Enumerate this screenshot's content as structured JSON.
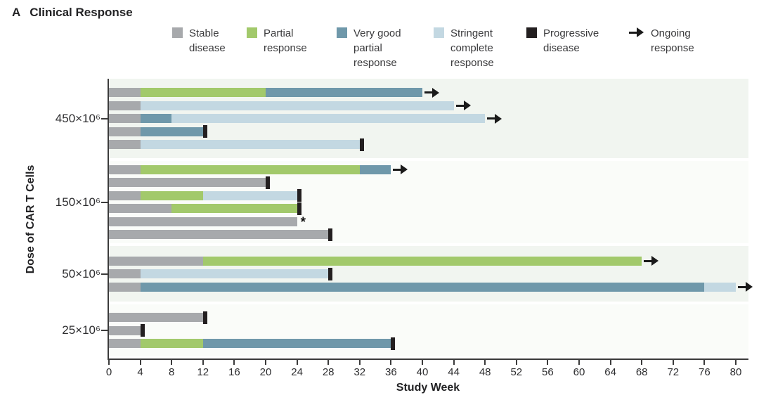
{
  "title": {
    "panel": "A",
    "text": "Clinical Response"
  },
  "legend": [
    {
      "key": "stable",
      "label": "Stable disease",
      "color": "#a7a9ac",
      "type": "swatch"
    },
    {
      "key": "partial",
      "label": "Partial response",
      "color": "#a2c96b",
      "type": "swatch"
    },
    {
      "key": "vgpr",
      "label": "Very good partial response",
      "color": "#6f98aa",
      "type": "swatch"
    },
    {
      "key": "scr",
      "label": "Stringent complete response",
      "color": "#c3d8e2",
      "type": "swatch"
    },
    {
      "key": "pd",
      "label": "Progressive disease",
      "color": "#231f20",
      "type": "swatch"
    },
    {
      "key": "ongoing",
      "label": "Ongoing response",
      "color": "#1a1a1a",
      "type": "arrow"
    }
  ],
  "annotations": {
    "asterisk": "*"
  },
  "chart_data": {
    "type": "bar",
    "orientation": "horizontal",
    "title": "Clinical Response",
    "xlabel": "Study Week",
    "ylabel": "Dose of CAR T Cells",
    "xlim": [
      0,
      81.5
    ],
    "xticks": [
      0,
      4,
      8,
      12,
      16,
      20,
      24,
      28,
      32,
      36,
      40,
      44,
      48,
      52,
      56,
      60,
      64,
      68,
      72,
      76,
      80
    ],
    "colors": {
      "stable": "#a7a9ac",
      "partial": "#a2c96b",
      "vgpr": "#6f98aa",
      "scr": "#c3d8e2",
      "pd": "#231f20",
      "band_tint": "#f1f5f0",
      "band_lite": "#fafcf9",
      "axis": "#3b3b3b"
    },
    "groups": [
      {
        "dose": "450×10⁶",
        "patients": [
          {
            "segments": [
              {
                "response": "stable",
                "start": 0,
                "end": 4
              },
              {
                "response": "partial",
                "start": 4,
                "end": 20
              },
              {
                "response": "vgpr",
                "start": 20,
                "end": 40
              }
            ],
            "marker": "ongoing"
          },
          {
            "segments": [
              {
                "response": "stable",
                "start": 0,
                "end": 4
              },
              {
                "response": "scr",
                "start": 4,
                "end": 44
              }
            ],
            "marker": "ongoing"
          },
          {
            "segments": [
              {
                "response": "stable",
                "start": 0,
                "end": 4
              },
              {
                "response": "vgpr",
                "start": 4,
                "end": 8
              },
              {
                "response": "scr",
                "start": 8,
                "end": 48
              }
            ],
            "marker": "ongoing"
          },
          {
            "segments": [
              {
                "response": "stable",
                "start": 0,
                "end": 4
              },
              {
                "response": "vgpr",
                "start": 4,
                "end": 12
              }
            ],
            "marker": "pd"
          },
          {
            "segments": [
              {
                "response": "stable",
                "start": 0,
                "end": 4
              },
              {
                "response": "scr",
                "start": 4,
                "end": 32
              }
            ],
            "marker": "pd"
          }
        ]
      },
      {
        "dose": "150×10⁶",
        "patients": [
          {
            "segments": [
              {
                "response": "stable",
                "start": 0,
                "end": 4
              },
              {
                "response": "partial",
                "start": 4,
                "end": 32
              },
              {
                "response": "vgpr",
                "start": 32,
                "end": 36
              }
            ],
            "marker": "ongoing"
          },
          {
            "segments": [
              {
                "response": "stable",
                "start": 0,
                "end": 20
              }
            ],
            "marker": "pd"
          },
          {
            "segments": [
              {
                "response": "stable",
                "start": 0,
                "end": 4
              },
              {
                "response": "partial",
                "start": 4,
                "end": 12
              },
              {
                "response": "scr",
                "start": 12,
                "end": 24
              }
            ],
            "marker": "pd"
          },
          {
            "segments": [
              {
                "response": "stable",
                "start": 0,
                "end": 8
              },
              {
                "response": "partial",
                "start": 8,
                "end": 24
              }
            ],
            "marker": "pd"
          },
          {
            "segments": [
              {
                "response": "stable",
                "start": 0,
                "end": 24
              }
            ],
            "marker": "asterisk"
          },
          {
            "segments": [
              {
                "response": "stable",
                "start": 0,
                "end": 28
              }
            ],
            "marker": "pd"
          }
        ]
      },
      {
        "dose": "50×10⁶",
        "patients": [
          {
            "segments": [
              {
                "response": "stable",
                "start": 0,
                "end": 12
              },
              {
                "response": "partial",
                "start": 12,
                "end": 68
              }
            ],
            "marker": "ongoing"
          },
          {
            "segments": [
              {
                "response": "stable",
                "start": 0,
                "end": 4
              },
              {
                "response": "scr",
                "start": 4,
                "end": 28
              }
            ],
            "marker": "pd"
          },
          {
            "segments": [
              {
                "response": "stable",
                "start": 0,
                "end": 4
              },
              {
                "response": "vgpr",
                "start": 4,
                "end": 76
              },
              {
                "response": "scr",
                "start": 76,
                "end": 80
              }
            ],
            "marker": "ongoing"
          }
        ]
      },
      {
        "dose": "25×10⁶",
        "patients": [
          {
            "segments": [
              {
                "response": "stable",
                "start": 0,
                "end": 12
              }
            ],
            "marker": "pd"
          },
          {
            "segments": [
              {
                "response": "stable",
                "start": 0,
                "end": 4
              }
            ],
            "marker": "pd"
          },
          {
            "segments": [
              {
                "response": "stable",
                "start": 0,
                "end": 4
              },
              {
                "response": "partial",
                "start": 4,
                "end": 12
              },
              {
                "response": "vgpr",
                "start": 12,
                "end": 36
              }
            ],
            "marker": "pd"
          }
        ]
      }
    ]
  }
}
